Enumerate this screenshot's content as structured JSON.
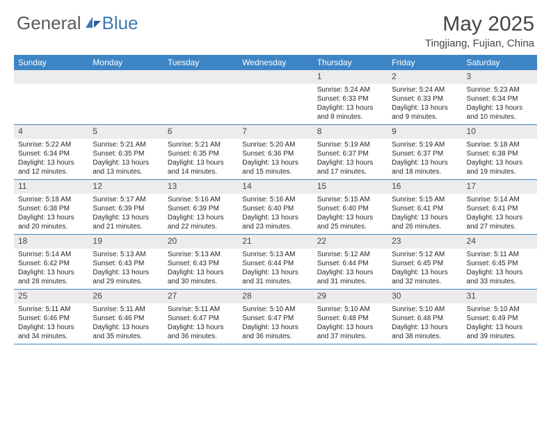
{
  "brand": {
    "part1": "General",
    "part2": "Blue"
  },
  "title": "May 2025",
  "location": "Tingjiang, Fujian, China",
  "day_header_bg": "#3e85c6",
  "daynum_bg": "#ececec",
  "border_color": "#3e85c6",
  "days": [
    "Sunday",
    "Monday",
    "Tuesday",
    "Wednesday",
    "Thursday",
    "Friday",
    "Saturday"
  ],
  "weeks": [
    [
      null,
      null,
      null,
      null,
      {
        "n": "1",
        "sr": "5:24 AM",
        "ss": "6:33 PM",
        "dl": "13 hours and 8 minutes."
      },
      {
        "n": "2",
        "sr": "5:24 AM",
        "ss": "6:33 PM",
        "dl": "13 hours and 9 minutes."
      },
      {
        "n": "3",
        "sr": "5:23 AM",
        "ss": "6:34 PM",
        "dl": "13 hours and 10 minutes."
      }
    ],
    [
      {
        "n": "4",
        "sr": "5:22 AM",
        "ss": "6:34 PM",
        "dl": "13 hours and 12 minutes."
      },
      {
        "n": "5",
        "sr": "5:21 AM",
        "ss": "6:35 PM",
        "dl": "13 hours and 13 minutes."
      },
      {
        "n": "6",
        "sr": "5:21 AM",
        "ss": "6:35 PM",
        "dl": "13 hours and 14 minutes."
      },
      {
        "n": "7",
        "sr": "5:20 AM",
        "ss": "6:36 PM",
        "dl": "13 hours and 15 minutes."
      },
      {
        "n": "8",
        "sr": "5:19 AM",
        "ss": "6:37 PM",
        "dl": "13 hours and 17 minutes."
      },
      {
        "n": "9",
        "sr": "5:19 AM",
        "ss": "6:37 PM",
        "dl": "13 hours and 18 minutes."
      },
      {
        "n": "10",
        "sr": "5:18 AM",
        "ss": "6:38 PM",
        "dl": "13 hours and 19 minutes."
      }
    ],
    [
      {
        "n": "11",
        "sr": "5:18 AM",
        "ss": "6:38 PM",
        "dl": "13 hours and 20 minutes."
      },
      {
        "n": "12",
        "sr": "5:17 AM",
        "ss": "6:39 PM",
        "dl": "13 hours and 21 minutes."
      },
      {
        "n": "13",
        "sr": "5:16 AM",
        "ss": "6:39 PM",
        "dl": "13 hours and 22 minutes."
      },
      {
        "n": "14",
        "sr": "5:16 AM",
        "ss": "6:40 PM",
        "dl": "13 hours and 23 minutes."
      },
      {
        "n": "15",
        "sr": "5:15 AM",
        "ss": "6:40 PM",
        "dl": "13 hours and 25 minutes."
      },
      {
        "n": "16",
        "sr": "5:15 AM",
        "ss": "6:41 PM",
        "dl": "13 hours and 26 minutes."
      },
      {
        "n": "17",
        "sr": "5:14 AM",
        "ss": "6:41 PM",
        "dl": "13 hours and 27 minutes."
      }
    ],
    [
      {
        "n": "18",
        "sr": "5:14 AM",
        "ss": "6:42 PM",
        "dl": "13 hours and 28 minutes."
      },
      {
        "n": "19",
        "sr": "5:13 AM",
        "ss": "6:43 PM",
        "dl": "13 hours and 29 minutes."
      },
      {
        "n": "20",
        "sr": "5:13 AM",
        "ss": "6:43 PM",
        "dl": "13 hours and 30 minutes."
      },
      {
        "n": "21",
        "sr": "5:13 AM",
        "ss": "6:44 PM",
        "dl": "13 hours and 31 minutes."
      },
      {
        "n": "22",
        "sr": "5:12 AM",
        "ss": "6:44 PM",
        "dl": "13 hours and 31 minutes."
      },
      {
        "n": "23",
        "sr": "5:12 AM",
        "ss": "6:45 PM",
        "dl": "13 hours and 32 minutes."
      },
      {
        "n": "24",
        "sr": "5:11 AM",
        "ss": "6:45 PM",
        "dl": "13 hours and 33 minutes."
      }
    ],
    [
      {
        "n": "25",
        "sr": "5:11 AM",
        "ss": "6:46 PM",
        "dl": "13 hours and 34 minutes."
      },
      {
        "n": "26",
        "sr": "5:11 AM",
        "ss": "6:46 PM",
        "dl": "13 hours and 35 minutes."
      },
      {
        "n": "27",
        "sr": "5:11 AM",
        "ss": "6:47 PM",
        "dl": "13 hours and 36 minutes."
      },
      {
        "n": "28",
        "sr": "5:10 AM",
        "ss": "6:47 PM",
        "dl": "13 hours and 36 minutes."
      },
      {
        "n": "29",
        "sr": "5:10 AM",
        "ss": "6:48 PM",
        "dl": "13 hours and 37 minutes."
      },
      {
        "n": "30",
        "sr": "5:10 AM",
        "ss": "6:48 PM",
        "dl": "13 hours and 38 minutes."
      },
      {
        "n": "31",
        "sr": "5:10 AM",
        "ss": "6:49 PM",
        "dl": "13 hours and 39 minutes."
      }
    ]
  ],
  "labels": {
    "sunrise": "Sunrise: ",
    "sunset": "Sunset: ",
    "daylight": "Daylight: "
  }
}
